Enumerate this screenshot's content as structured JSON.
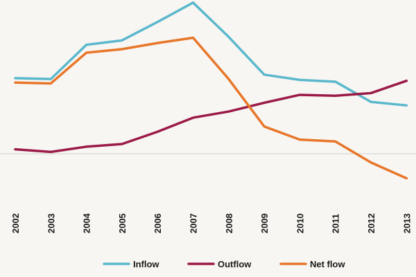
{
  "chart_data": {
    "type": "line",
    "title": "",
    "xlabel": "",
    "ylabel": "",
    "x": [
      "2002",
      "2003",
      "2004",
      "2005",
      "2006",
      "2007",
      "2008",
      "2009",
      "2010",
      "2011",
      "2012",
      "2013"
    ],
    "ylim": [
      -30,
      175
    ],
    "zero_line": true,
    "grid": false,
    "legend_position": "bottom",
    "series": [
      {
        "name": "Inflow",
        "color": "#5bb8cc",
        "values": [
          86,
          85,
          124,
          129,
          150,
          172,
          133,
          90,
          84,
          82,
          59,
          55
        ]
      },
      {
        "name": "Outflow",
        "color": "#9b1a47",
        "values": [
          5,
          2,
          8,
          11,
          25,
          41,
          48,
          58,
          67,
          66,
          69,
          83
        ]
      },
      {
        "name": "Net flow",
        "color": "#e8762a",
        "values": [
          81,
          80,
          115,
          119,
          126,
          132,
          85,
          31,
          16,
          14,
          -10,
          -28
        ]
      }
    ]
  }
}
